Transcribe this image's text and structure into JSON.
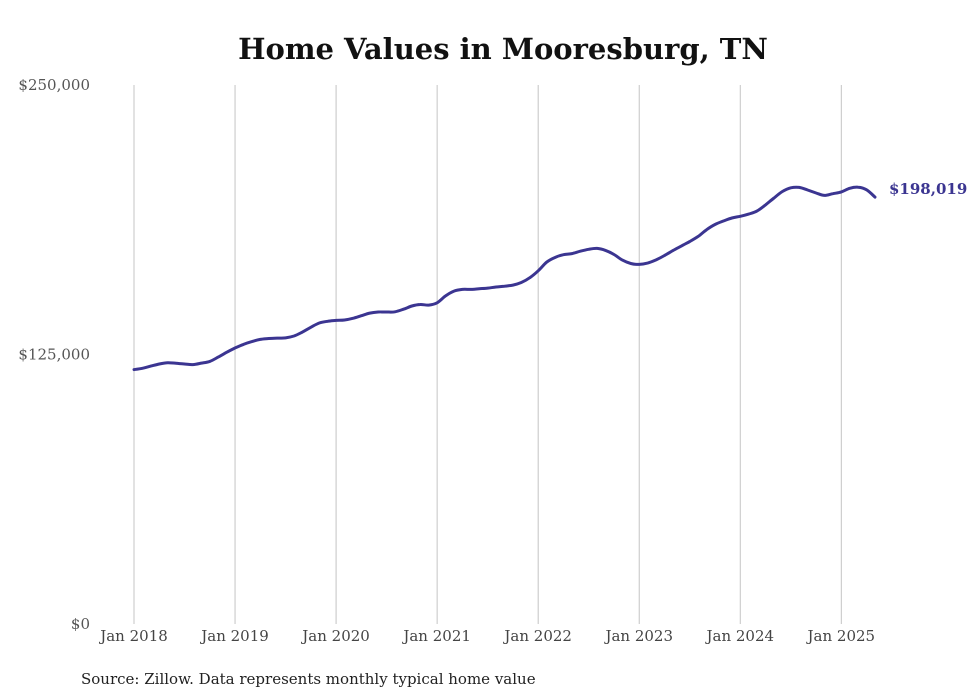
{
  "chart_data": {
    "type": "line",
    "title": "Home Values in Mooresburg, TN",
    "source": "Source: Zillow. Data represents monthly typical home value",
    "y_ticks": [
      {
        "value": 0,
        "label": "$0"
      },
      {
        "value": 125000,
        "label": "$125,000"
      },
      {
        "value": 250000,
        "label": "$250,000"
      }
    ],
    "ylim": [
      0,
      250000
    ],
    "x_ticks": [
      {
        "value": "2018-01",
        "label": "Jan 2018"
      },
      {
        "value": "2019-01",
        "label": "Jan 2019"
      },
      {
        "value": "2020-01",
        "label": "Jan 2020"
      },
      {
        "value": "2021-01",
        "label": "Jan 2021"
      },
      {
        "value": "2022-01",
        "label": "Jan 2022"
      },
      {
        "value": "2023-01",
        "label": "Jan 2023"
      },
      {
        "value": "2024-01",
        "label": "Jan 2024"
      },
      {
        "value": "2025-01",
        "label": "Jan 2025"
      }
    ],
    "xlim": [
      "2018-01",
      "2025-05"
    ],
    "grid": "vertical",
    "line_color": "#3b3591",
    "end_label": "$198,019",
    "series": [
      {
        "x": [
          "2018-01",
          "2018-02",
          "2018-03",
          "2018-04",
          "2018-05",
          "2018-06",
          "2018-07",
          "2018-08",
          "2018-09",
          "2018-10",
          "2018-11",
          "2018-12",
          "2019-01",
          "2019-02",
          "2019-03",
          "2019-04",
          "2019-05",
          "2019-06",
          "2019-07",
          "2019-08",
          "2019-09",
          "2019-10",
          "2019-11",
          "2019-12",
          "2020-01",
          "2020-02",
          "2020-03",
          "2020-04",
          "2020-05",
          "2020-06",
          "2020-07",
          "2020-08",
          "2020-09",
          "2020-10",
          "2020-11",
          "2020-12",
          "2021-01",
          "2021-02",
          "2021-03",
          "2021-04",
          "2021-05",
          "2021-06",
          "2021-07",
          "2021-08",
          "2021-09",
          "2021-10",
          "2021-11",
          "2021-12",
          "2022-01",
          "2022-02",
          "2022-03",
          "2022-04",
          "2022-05",
          "2022-06",
          "2022-07",
          "2022-08",
          "2022-09",
          "2022-10",
          "2022-11",
          "2022-12",
          "2023-01",
          "2023-02",
          "2023-03",
          "2023-04",
          "2023-05",
          "2023-06",
          "2023-07",
          "2023-08",
          "2023-09",
          "2023-10",
          "2023-11",
          "2023-12",
          "2024-01",
          "2024-02",
          "2024-03",
          "2024-04",
          "2024-05",
          "2024-06",
          "2024-07",
          "2024-08",
          "2024-09",
          "2024-10",
          "2024-11",
          "2024-12",
          "2025-01",
          "2025-02",
          "2025-03",
          "2025-04",
          "2025-05"
        ],
        "values": [
          118000,
          118600,
          119600,
          120600,
          121200,
          120900,
          120600,
          120300,
          121000,
          121800,
          123800,
          126000,
          128000,
          129700,
          131000,
          132000,
          132400,
          132600,
          132700,
          133600,
          135400,
          137600,
          139600,
          140400,
          140800,
          141000,
          141800,
          143000,
          144200,
          144700,
          144700,
          144800,
          146000,
          147500,
          148200,
          147900,
          149000,
          152200,
          154400,
          155200,
          155200,
          155500,
          155800,
          156300,
          156700,
          157200,
          158400,
          160600,
          163800,
          167800,
          170000,
          171300,
          171800,
          172900,
          173800,
          174200,
          173300,
          171400,
          168800,
          167200,
          166800,
          167400,
          168900,
          170900,
          173200,
          175300,
          177400,
          179800,
          182900,
          185300,
          186900,
          188300,
          189100,
          190100,
          191600,
          194400,
          197600,
          200600,
          202300,
          202500,
          201300,
          199900,
          198800,
          199600,
          200400,
          202100,
          202600,
          201400,
          198019
        ]
      }
    ]
  }
}
